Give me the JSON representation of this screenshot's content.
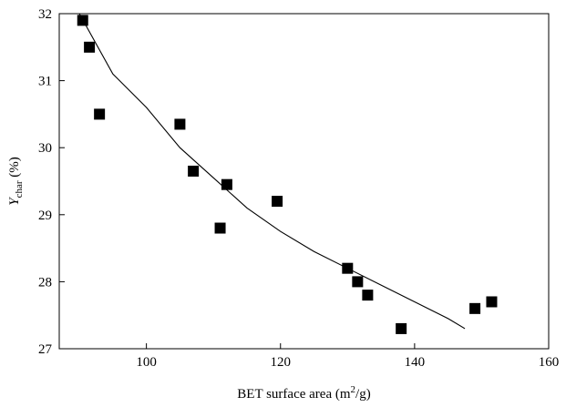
{
  "chart_data": {
    "type": "scatter",
    "xlabel": "BET surface area (m",
    "xlabel_sup": "2",
    "xlabel_tail": "/g)",
    "ylabel_main": "Y",
    "ylabel_sub": "char",
    "ylabel_tail": " (%)",
    "xlim": [
      87,
      160
    ],
    "ylim": [
      27,
      32
    ],
    "x_ticks": [
      100,
      120,
      140,
      160
    ],
    "y_ticks": [
      27,
      28,
      29,
      30,
      31,
      32
    ],
    "grid": false,
    "legend": "none",
    "marker": "square",
    "marker_color": "#000000",
    "points": [
      {
        "x": 90.5,
        "y": 31.9
      },
      {
        "x": 91.5,
        "y": 31.5
      },
      {
        "x": 93.0,
        "y": 30.5
      },
      {
        "x": 105.0,
        "y": 30.35
      },
      {
        "x": 107.0,
        "y": 29.65
      },
      {
        "x": 111.0,
        "y": 28.8
      },
      {
        "x": 112.0,
        "y": 29.45
      },
      {
        "x": 119.5,
        "y": 29.2
      },
      {
        "x": 130.0,
        "y": 28.2
      },
      {
        "x": 131.5,
        "y": 28.0
      },
      {
        "x": 133.0,
        "y": 27.8
      },
      {
        "x": 138.0,
        "y": 27.3
      },
      {
        "x": 149.0,
        "y": 27.6
      },
      {
        "x": 151.5,
        "y": 27.7
      }
    ],
    "fit_curve": {
      "type": "fitted-curve",
      "color": "#000000",
      "points": [
        {
          "x": 90.0,
          "y": 32.0
        },
        {
          "x": 95.0,
          "y": 31.1
        },
        {
          "x": 100.0,
          "y": 30.6
        },
        {
          "x": 105.0,
          "y": 30.0
        },
        {
          "x": 110.0,
          "y": 29.55
        },
        {
          "x": 115.0,
          "y": 29.1
        },
        {
          "x": 120.0,
          "y": 28.75
        },
        {
          "x": 125.0,
          "y": 28.45
        },
        {
          "x": 130.0,
          "y": 28.2
        },
        {
          "x": 135.0,
          "y": 27.95
        },
        {
          "x": 140.0,
          "y": 27.7
        },
        {
          "x": 145.0,
          "y": 27.45
        },
        {
          "x": 147.5,
          "y": 27.3
        }
      ]
    }
  }
}
